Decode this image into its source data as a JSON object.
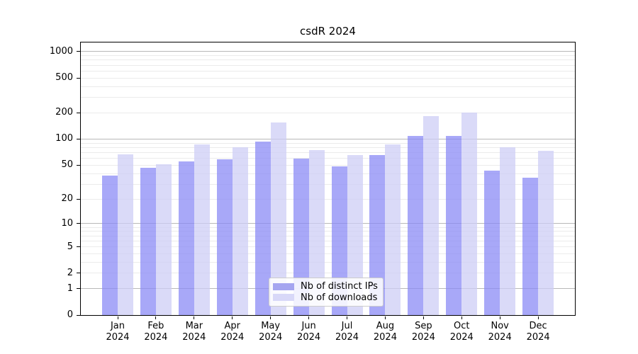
{
  "chart_data": {
    "type": "bar",
    "title": "csdR 2024",
    "scale": "log10(x+1)",
    "grid": true,
    "legend_position": "bottom-center",
    "categories": [
      "Jan",
      "Feb",
      "Mar",
      "Apr",
      "May",
      "Jun",
      "Jul",
      "Aug",
      "Sep",
      "Oct",
      "Nov",
      "Dec"
    ],
    "x_year_label": "2024",
    "series": [
      {
        "name": "Nb of distinct IPs",
        "color": "#a5a5f0",
        "fill": "rgba(136,136,245,0.73)",
        "values": [
          38,
          47,
          55,
          58,
          94,
          60,
          48,
          65,
          109,
          109,
          43,
          36
        ]
      },
      {
        "name": "Nb of downloads",
        "color": "#d8d8f8",
        "fill": "rgba(204,204,245,0.73)",
        "values": [
          67,
          51,
          87,
          80,
          155,
          75,
          65,
          87,
          184,
          200,
          80,
          73
        ]
      }
    ],
    "y_ticks": [
      0,
      1,
      2,
      5,
      10,
      20,
      50,
      100,
      200,
      500,
      1000
    ],
    "major_gridlines": [
      1,
      10,
      100,
      1000
    ],
    "ylim": [
      0,
      1280
    ]
  }
}
